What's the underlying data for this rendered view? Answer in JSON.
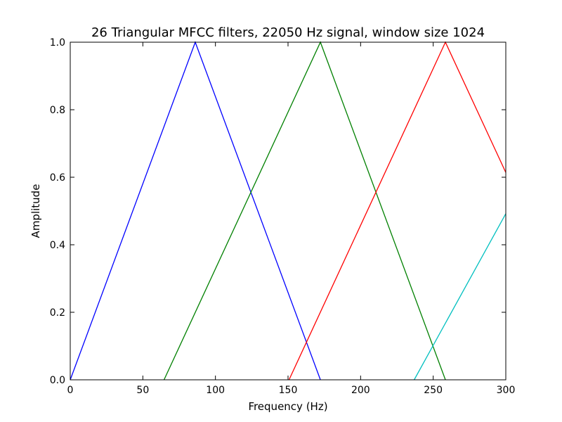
{
  "chart_data": {
    "type": "line",
    "title": "26 Triangular MFCC filters, 22050 Hz signal, window size 1024",
    "xlabel": "Frequency (Hz)",
    "ylabel": "Amplitude",
    "xlim": [
      0,
      300
    ],
    "ylim": [
      0,
      1.0
    ],
    "x_ticks": [
      "0",
      "50",
      "100",
      "150",
      "200",
      "250",
      "300"
    ],
    "y_ticks": [
      "0.0",
      "0.2",
      "0.4",
      "0.6",
      "0.8",
      "1.0"
    ],
    "grid": false,
    "series": [
      {
        "color": "#0000ff",
        "x": [
          0,
          86.1,
          172.3
        ],
        "y": [
          0,
          1,
          0
        ]
      },
      {
        "color": "#008000",
        "x": [
          64.6,
          172.3,
          258.4
        ],
        "y": [
          0,
          1,
          0
        ]
      },
      {
        "color": "#ff0000",
        "x": [
          150.7,
          258.4,
          300
        ],
        "y": [
          0,
          1,
          0.614
        ]
      },
      {
        "color": "#00bfbf",
        "x": [
          236.9,
          300
        ],
        "y": [
          0,
          0.492
        ]
      }
    ]
  }
}
